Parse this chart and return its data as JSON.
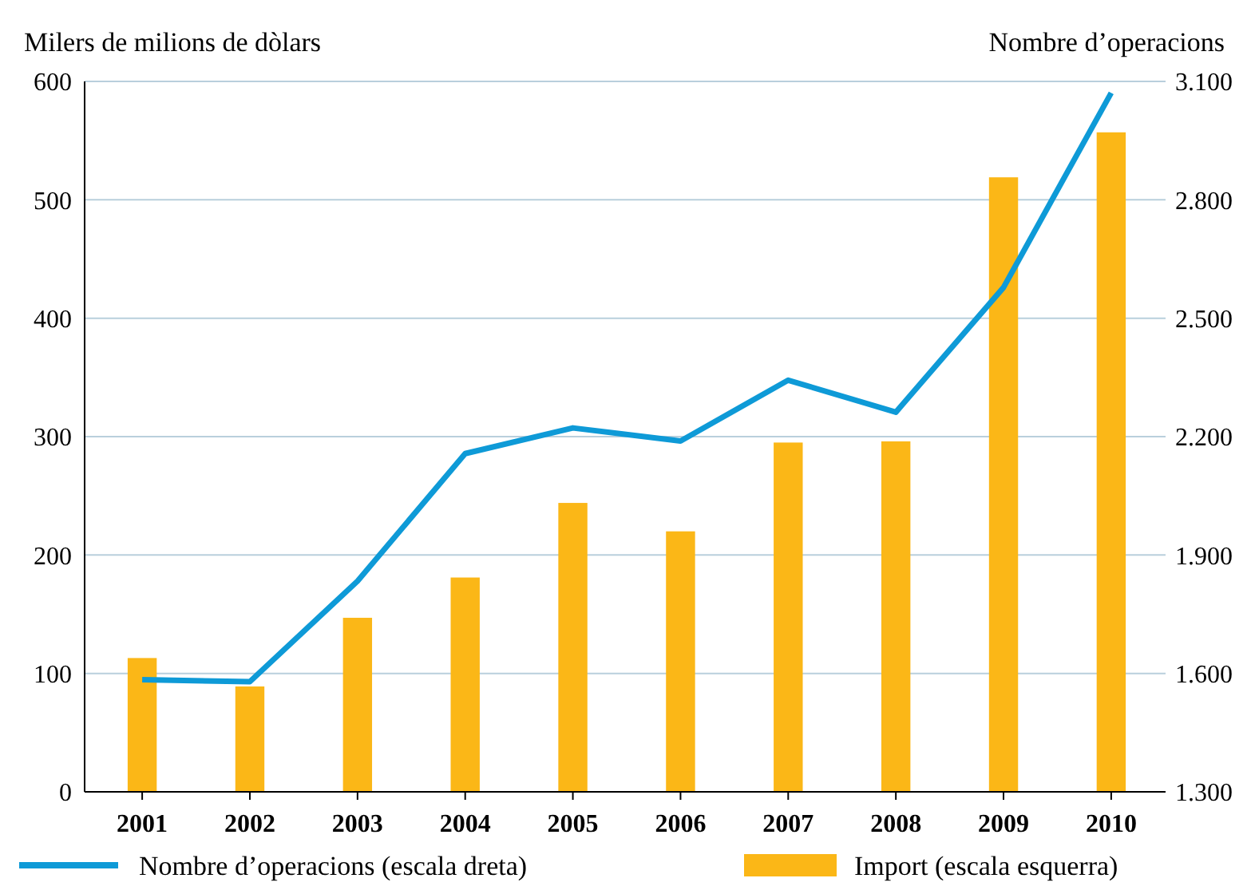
{
  "chart_data": {
    "type": "bar",
    "ylabel": "Milers de milions de dòlars",
    "y2label": "Nombre d’operacions",
    "categories": [
      "2001",
      "2002",
      "2003",
      "2004",
      "2005",
      "2006",
      "2007",
      "2008",
      "2009",
      "2010"
    ],
    "series": [
      {
        "name": "Nombre d’operacions (escala dreta)",
        "type": "line",
        "axis": "y2",
        "color": "#0e9ad7",
        "values": [
          1584,
          1579,
          1834,
          2157,
          2222,
          2189,
          2343,
          2262,
          2578,
          3071
        ]
      },
      {
        "name": "Import (escala esquerra)",
        "color": "#fbb717",
        "values": [
          113,
          89,
          147,
          181,
          244,
          220,
          295,
          296,
          519,
          557
        ]
      }
    ],
    "ylim": [
      0,
      600
    ],
    "yticks": [
      0,
      100,
      200,
      300,
      400,
      500,
      600
    ],
    "y2lim": [
      1300,
      3100
    ],
    "y2ticks": [
      {
        "value": 1300,
        "label": "1.300"
      },
      {
        "value": 1600,
        "label": "1.600"
      },
      {
        "value": 1900,
        "label": "1.900"
      },
      {
        "value": 2200,
        "label": "2.200"
      },
      {
        "value": 2500,
        "label": "2.500"
      },
      {
        "value": 2800,
        "label": "2.800"
      },
      {
        "value": 3100,
        "label": "3.100"
      }
    ],
    "grid": "y",
    "legend": "bottom"
  }
}
